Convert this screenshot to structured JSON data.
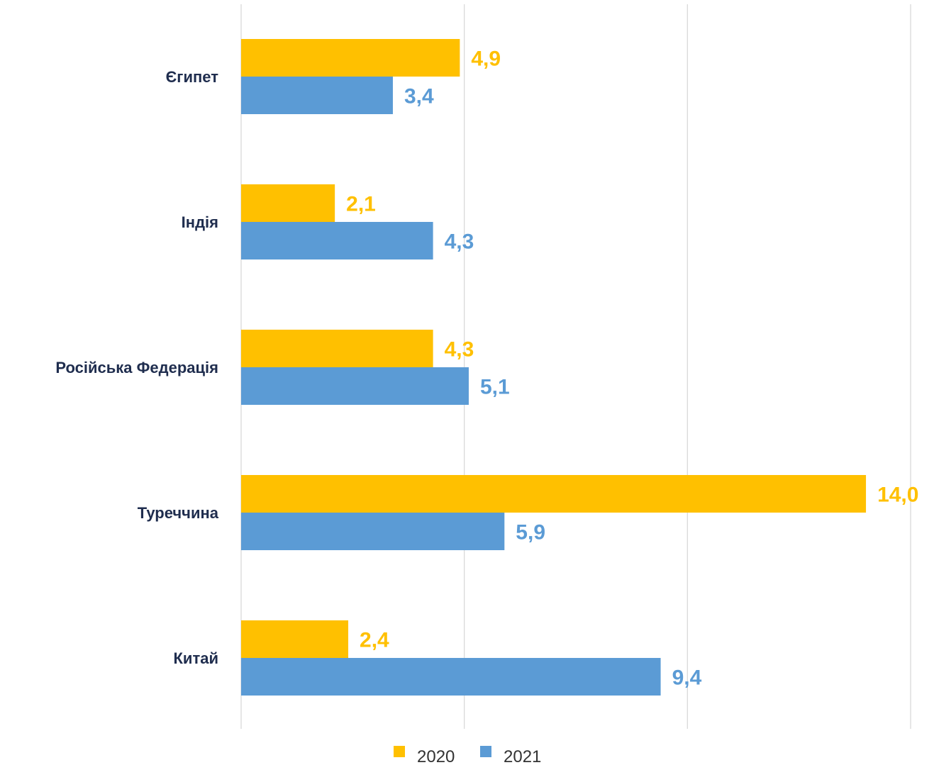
{
  "chart_data": {
    "type": "bar",
    "orientation": "horizontal",
    "categories": [
      "Єгипет",
      "Індія",
      "Російська Федерація",
      "Туреччина",
      "Китай"
    ],
    "series": [
      {
        "name": "2020",
        "color": "#FFC000",
        "values": [
          4.9,
          2.1,
          4.3,
          14.0,
          2.4
        ],
        "labels": [
          "4,9",
          "2,1",
          "4,3",
          "14,0",
          "2,4"
        ]
      },
      {
        "name": "2021",
        "color": "#5B9BD5",
        "values": [
          3.4,
          4.3,
          5.1,
          5.9,
          9.4
        ],
        "labels": [
          "3,4",
          "4,3",
          "5,1",
          "5,9",
          "9,4"
        ]
      }
    ],
    "xlim": [
      0,
      15
    ],
    "gridlines": [
      0,
      5,
      10,
      15
    ],
    "grid": true,
    "legend_position": "bottom",
    "title": "",
    "xlabel": "",
    "ylabel": ""
  }
}
